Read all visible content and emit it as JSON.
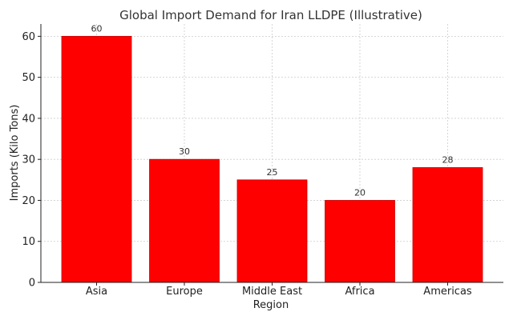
{
  "chart_data": {
    "type": "bar",
    "title": "Global Import Demand for Iran LLDPE (Illustrative)",
    "xlabel": "Region",
    "ylabel": "Imports (Kilo Tons)",
    "categories": [
      "Asia",
      "Europe",
      "Middle East",
      "Africa",
      "Americas"
    ],
    "values": [
      60,
      30,
      25,
      20,
      28
    ],
    "data_labels": [
      "60",
      "30",
      "25",
      "20",
      "28"
    ],
    "ylim": [
      0,
      63
    ],
    "yticks": [
      0,
      10,
      20,
      30,
      40,
      50,
      60
    ],
    "grid": true,
    "legend": "none",
    "bar_color": "#ff0000",
    "bar_edge_color": "#cc0000",
    "grid_color": "#cccccc"
  }
}
